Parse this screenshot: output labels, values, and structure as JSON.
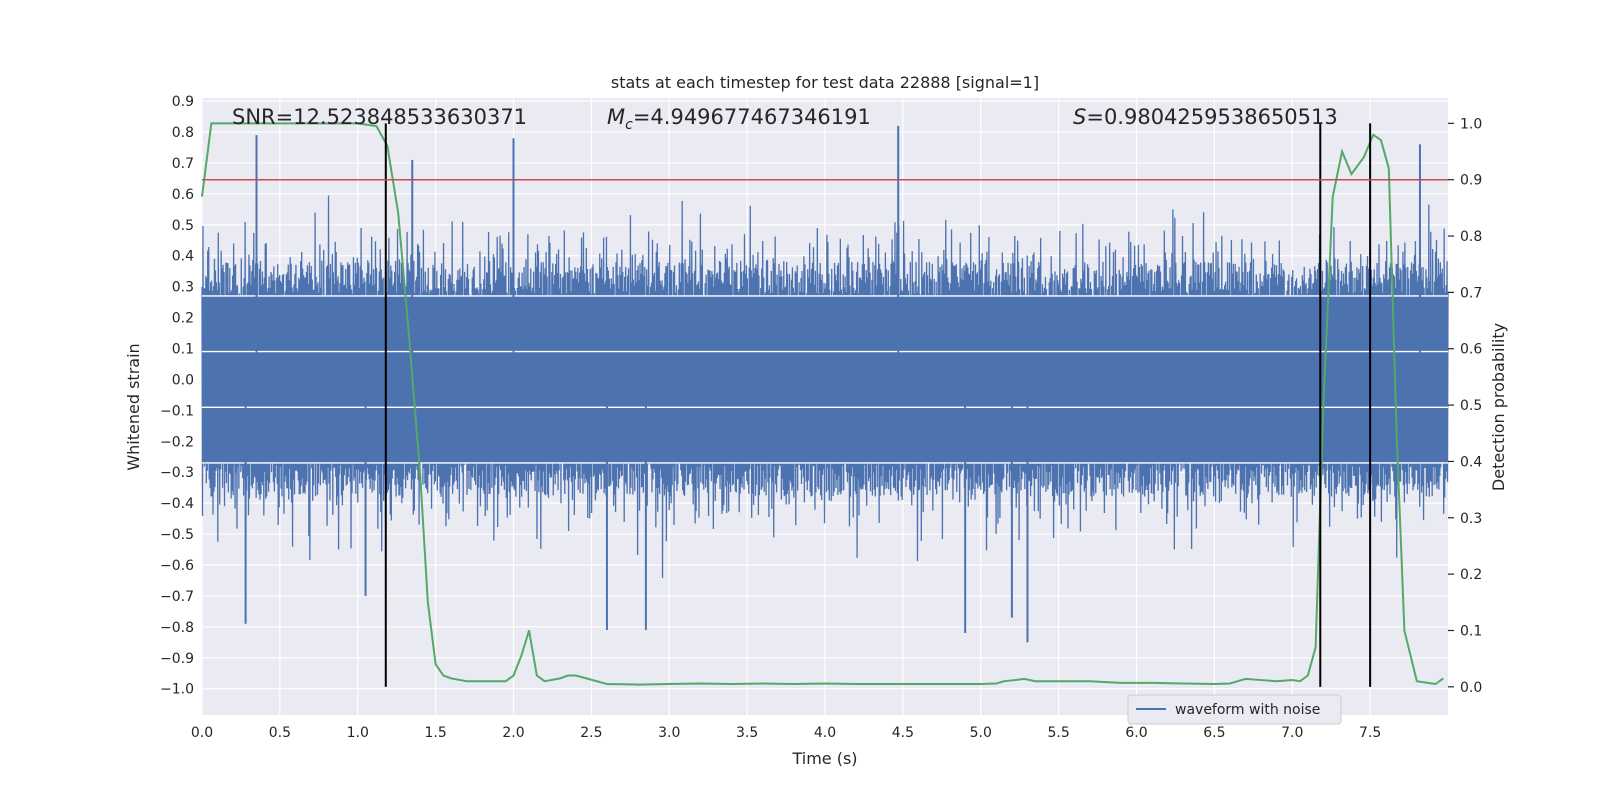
{
  "chart_data": {
    "type": "line",
    "title": "stats at each timestep for test data 22888 [signal=1]",
    "xlabel": "Time (s)",
    "ylabel_left": "Whitened strain",
    "ylabel_right": "Detection probability",
    "xlim": [
      0.0,
      8.0
    ],
    "ylim_left": [
      -1.085,
      0.91
    ],
    "ylim_right": [
      -0.05,
      1.045
    ],
    "x_ticks": [
      0.0,
      0.5,
      1.0,
      1.5,
      2.0,
      2.5,
      3.0,
      3.5,
      4.0,
      4.5,
      5.0,
      5.5,
      6.0,
      6.5,
      7.0,
      7.5
    ],
    "x_tick_labels": [
      "0.0",
      "0.5",
      "1.0",
      "1.5",
      "2.0",
      "2.5",
      "3.0",
      "3.5",
      "4.0",
      "4.5",
      "5.0",
      "5.5",
      "6.0",
      "6.5",
      "7.0",
      "7.5"
    ],
    "y_ticks_left": [
      0.9,
      0.8,
      0.7,
      0.6,
      0.5,
      0.4,
      0.3,
      0.2,
      0.1,
      0.0,
      -0.1,
      -0.2,
      -0.3,
      -0.4,
      -0.5,
      -0.6,
      -0.7,
      -0.8,
      -0.9,
      -1.0
    ],
    "y_tick_labels_left": [
      "0.9",
      "0.8",
      "0.7",
      "0.6",
      "0.5",
      "0.4",
      "0.3",
      "0.2",
      "0.1",
      "0.0",
      "−0.1",
      "−0.2",
      "−0.3",
      "−0.4",
      "−0.5",
      "−0.6",
      "−0.7",
      "−0.8",
      "−0.9",
      "−1.0"
    ],
    "y_ticks_right": [
      1.0,
      0.9,
      0.8,
      0.7,
      0.6,
      0.5,
      0.4,
      0.3,
      0.2,
      0.1,
      0.0
    ],
    "y_tick_labels_right": [
      "1.0",
      "0.9",
      "0.8",
      "0.7",
      "0.6",
      "0.5",
      "0.4",
      "0.3",
      "0.2",
      "0.1",
      "0.0"
    ],
    "annotations": {
      "snr": "SNR=12.523848533630371",
      "mc_symbol": "M",
      "mc_sub": "c",
      "mc_value": "=4.949677467346191",
      "s_symbol": "S",
      "s_value": "=0.9804259538650513"
    },
    "threshold": 0.9,
    "vertical_markers": [
      1.18,
      7.18,
      7.5
    ],
    "series": [
      {
        "name": "waveform with noise",
        "color": "#4c72b0",
        "axis": "left",
        "description": "whitened strain noise, amplitude ~0.45 envelope with spikes to ~0.8/-0.85",
        "spikes": [
          {
            "x": 0.35,
            "y": 0.79
          },
          {
            "x": 0.28,
            "y": -0.79
          },
          {
            "x": 1.35,
            "y": 0.71
          },
          {
            "x": 2.0,
            "y": 0.78
          },
          {
            "x": 2.6,
            "y": -0.81
          },
          {
            "x": 2.85,
            "y": -0.81
          },
          {
            "x": 4.47,
            "y": 0.82
          },
          {
            "x": 5.2,
            "y": -0.77
          },
          {
            "x": 5.3,
            "y": -0.85
          },
          {
            "x": 4.9,
            "y": -0.82
          },
          {
            "x": 7.82,
            "y": 0.76
          },
          {
            "x": 1.05,
            "y": -0.7
          }
        ]
      },
      {
        "name": "detection probability",
        "color": "#55a868",
        "axis": "right",
        "x": [
          0.0,
          0.06,
          0.2,
          0.4,
          0.6,
          0.8,
          1.0,
          1.12,
          1.19,
          1.26,
          1.33,
          1.4,
          1.45,
          1.5,
          1.55,
          1.6,
          1.7,
          1.8,
          1.9,
          1.95,
          2.0,
          2.05,
          2.1,
          2.15,
          2.2,
          2.3,
          2.35,
          2.4,
          2.6,
          2.8,
          3.0,
          3.2,
          3.4,
          3.6,
          3.8,
          4.0,
          4.2,
          4.5,
          4.8,
          5.0,
          5.1,
          5.15,
          5.22,
          5.28,
          5.35,
          5.5,
          5.7,
          5.9,
          6.1,
          6.3,
          6.5,
          6.6,
          6.65,
          6.7,
          6.8,
          6.9,
          7.0,
          7.05,
          7.1,
          7.15,
          7.2,
          7.26,
          7.32,
          7.38,
          7.46,
          7.52,
          7.57,
          7.62,
          7.67,
          7.72,
          7.8,
          7.92,
          7.97
        ],
        "y": [
          0.87,
          1.0,
          1.0,
          1.0,
          1.0,
          1.0,
          1.0,
          0.995,
          0.96,
          0.84,
          0.62,
          0.38,
          0.15,
          0.04,
          0.02,
          0.015,
          0.01,
          0.01,
          0.01,
          0.01,
          0.02,
          0.055,
          0.1,
          0.02,
          0.01,
          0.015,
          0.02,
          0.02,
          0.005,
          0.004,
          0.005,
          0.006,
          0.005,
          0.006,
          0.005,
          0.006,
          0.005,
          0.005,
          0.005,
          0.005,
          0.006,
          0.01,
          0.012,
          0.014,
          0.01,
          0.01,
          0.01,
          0.007,
          0.007,
          0.006,
          0.005,
          0.006,
          0.01,
          0.014,
          0.012,
          0.01,
          0.012,
          0.01,
          0.02,
          0.07,
          0.5,
          0.87,
          0.95,
          0.91,
          0.94,
          0.98,
          0.97,
          0.92,
          0.45,
          0.1,
          0.01,
          0.005,
          0.015
        ]
      }
    ],
    "threshold_color": "#c44e52",
    "marker_color": "#000000",
    "legend": {
      "label": "waveform with noise",
      "placement": "lower-right"
    }
  }
}
